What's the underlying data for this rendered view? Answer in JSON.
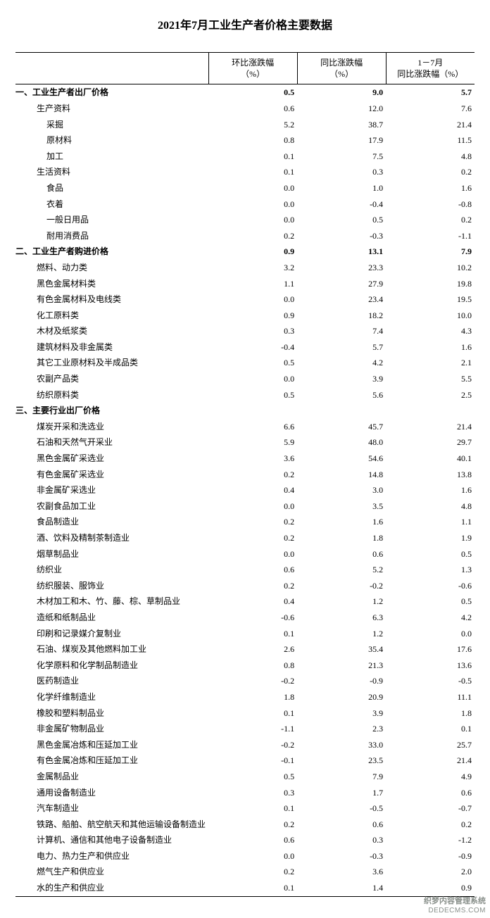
{
  "title": "2021年7月工业生产者价格主要数据",
  "columns": {
    "label": "",
    "mom": "环比涨跌幅\n（%）",
    "yoy": "同比涨跌幅\n（%）",
    "ytd": "1－7月\n同比涨跌幅（%）"
  },
  "rows": [
    {
      "label": "一、工业生产者出厂价格",
      "indent": 0,
      "bold": true,
      "mom": "0.5",
      "yoy": "9.0",
      "ytd": "5.7"
    },
    {
      "label": "生产资料",
      "indent": 1,
      "mom": "0.6",
      "yoy": "12.0",
      "ytd": "7.6"
    },
    {
      "label": "采掘",
      "indent": 2,
      "mom": "5.2",
      "yoy": "38.7",
      "ytd": "21.4"
    },
    {
      "label": "原材料",
      "indent": 2,
      "mom": "0.8",
      "yoy": "17.9",
      "ytd": "11.5"
    },
    {
      "label": "加工",
      "indent": 2,
      "mom": "0.1",
      "yoy": "7.5",
      "ytd": "4.8"
    },
    {
      "label": "生活资料",
      "indent": 1,
      "mom": "0.1",
      "yoy": "0.3",
      "ytd": "0.2"
    },
    {
      "label": "食品",
      "indent": 2,
      "mom": "0.0",
      "yoy": "1.0",
      "ytd": "1.6"
    },
    {
      "label": "衣着",
      "indent": 2,
      "mom": "0.0",
      "yoy": "-0.4",
      "ytd": "-0.8"
    },
    {
      "label": "一般日用品",
      "indent": 2,
      "mom": "0.0",
      "yoy": "0.5",
      "ytd": "0.2"
    },
    {
      "label": "耐用消费品",
      "indent": 2,
      "mom": "0.2",
      "yoy": "-0.3",
      "ytd": "-1.1"
    },
    {
      "label": "二、工业生产者购进价格",
      "indent": 0,
      "bold": true,
      "mom": "0.9",
      "yoy": "13.1",
      "ytd": "7.9"
    },
    {
      "label": "燃料、动力类",
      "indent": 1,
      "mom": "3.2",
      "yoy": "23.3",
      "ytd": "10.2"
    },
    {
      "label": "黑色金属材料类",
      "indent": 1,
      "mom": "1.1",
      "yoy": "27.9",
      "ytd": "19.8"
    },
    {
      "label": "有色金属材料及电线类",
      "indent": 1,
      "mom": "0.0",
      "yoy": "23.4",
      "ytd": "19.5"
    },
    {
      "label": "化工原料类",
      "indent": 1,
      "mom": "0.9",
      "yoy": "18.2",
      "ytd": "10.0"
    },
    {
      "label": "木材及纸浆类",
      "indent": 1,
      "mom": "0.3",
      "yoy": "7.4",
      "ytd": "4.3"
    },
    {
      "label": "建筑材料及非金属类",
      "indent": 1,
      "mom": "-0.4",
      "yoy": "5.7",
      "ytd": "1.6"
    },
    {
      "label": "其它工业原材料及半成品类",
      "indent": 1,
      "mom": "0.5",
      "yoy": "4.2",
      "ytd": "2.1"
    },
    {
      "label": "农副产品类",
      "indent": 1,
      "mom": "0.0",
      "yoy": "3.9",
      "ytd": "5.5"
    },
    {
      "label": "纺织原料类",
      "indent": 1,
      "mom": "0.5",
      "yoy": "5.6",
      "ytd": "2.5"
    },
    {
      "label": "三、主要行业出厂价格",
      "indent": 0,
      "bold": true,
      "mom": "",
      "yoy": "",
      "ytd": ""
    },
    {
      "label": "煤炭开采和洗选业",
      "indent": 1,
      "mom": "6.6",
      "yoy": "45.7",
      "ytd": "21.4"
    },
    {
      "label": "石油和天然气开采业",
      "indent": 1,
      "mom": "5.9",
      "yoy": "48.0",
      "ytd": "29.7"
    },
    {
      "label": "黑色金属矿采选业",
      "indent": 1,
      "mom": "3.6",
      "yoy": "54.6",
      "ytd": "40.1"
    },
    {
      "label": "有色金属矿采选业",
      "indent": 1,
      "mom": "0.2",
      "yoy": "14.8",
      "ytd": "13.8"
    },
    {
      "label": "非金属矿采选业",
      "indent": 1,
      "mom": "0.4",
      "yoy": "3.0",
      "ytd": "1.6"
    },
    {
      "label": "农副食品加工业",
      "indent": 1,
      "mom": "0.0",
      "yoy": "3.5",
      "ytd": "4.8"
    },
    {
      "label": "食品制造业",
      "indent": 1,
      "mom": "0.2",
      "yoy": "1.6",
      "ytd": "1.1"
    },
    {
      "label": "酒、饮料及精制茶制造业",
      "indent": 1,
      "mom": "0.2",
      "yoy": "1.8",
      "ytd": "1.9"
    },
    {
      "label": "烟草制品业",
      "indent": 1,
      "mom": "0.0",
      "yoy": "0.6",
      "ytd": "0.5"
    },
    {
      "label": "纺织业",
      "indent": 1,
      "mom": "0.6",
      "yoy": "5.2",
      "ytd": "1.3"
    },
    {
      "label": "纺织服装、服饰业",
      "indent": 1,
      "mom": "0.2",
      "yoy": "-0.2",
      "ytd": "-0.6"
    },
    {
      "label": "木材加工和木、竹、藤、棕、草制品业",
      "indent": 1,
      "mom": "0.4",
      "yoy": "1.2",
      "ytd": "0.5"
    },
    {
      "label": "造纸和纸制品业",
      "indent": 1,
      "mom": "-0.6",
      "yoy": "6.3",
      "ytd": "4.2"
    },
    {
      "label": "印刷和记录媒介复制业",
      "indent": 1,
      "mom": "0.1",
      "yoy": "1.2",
      "ytd": "0.0"
    },
    {
      "label": "石油、煤炭及其他燃料加工业",
      "indent": 1,
      "mom": "2.6",
      "yoy": "35.4",
      "ytd": "17.6"
    },
    {
      "label": "化学原料和化学制品制造业",
      "indent": 1,
      "mom": "0.8",
      "yoy": "21.3",
      "ytd": "13.6"
    },
    {
      "label": "医药制造业",
      "indent": 1,
      "mom": "-0.2",
      "yoy": "-0.9",
      "ytd": "-0.5"
    },
    {
      "label": "化学纤维制造业",
      "indent": 1,
      "mom": "1.8",
      "yoy": "20.9",
      "ytd": "11.1"
    },
    {
      "label": "橡胶和塑料制品业",
      "indent": 1,
      "mom": "0.1",
      "yoy": "3.9",
      "ytd": "1.8"
    },
    {
      "label": "非金属矿物制品业",
      "indent": 1,
      "mom": "-1.1",
      "yoy": "2.3",
      "ytd": "0.1"
    },
    {
      "label": "黑色金属冶炼和压延加工业",
      "indent": 1,
      "mom": "-0.2",
      "yoy": "33.0",
      "ytd": "25.7"
    },
    {
      "label": "有色金属冶炼和压延加工业",
      "indent": 1,
      "mom": "-0.1",
      "yoy": "23.5",
      "ytd": "21.4"
    },
    {
      "label": "金属制品业",
      "indent": 1,
      "mom": "0.5",
      "yoy": "7.9",
      "ytd": "4.9"
    },
    {
      "label": "通用设备制造业",
      "indent": 1,
      "mom": "0.3",
      "yoy": "1.7",
      "ytd": "0.6"
    },
    {
      "label": "汽车制造业",
      "indent": 1,
      "mom": "0.1",
      "yoy": "-0.5",
      "ytd": "-0.7"
    },
    {
      "label": "铁路、船舶、航空航天和其他运输设备制造业",
      "indent": 1,
      "mom": "0.2",
      "yoy": "0.6",
      "ytd": "0.2"
    },
    {
      "label": "计算机、通信和其他电子设备制造业",
      "indent": 1,
      "mom": "0.6",
      "yoy": "0.3",
      "ytd": "-1.2"
    },
    {
      "label": "电力、热力生产和供应业",
      "indent": 1,
      "mom": "0.0",
      "yoy": "-0.3",
      "ytd": "-0.9"
    },
    {
      "label": "燃气生产和供应业",
      "indent": 1,
      "mom": "0.2",
      "yoy": "3.6",
      "ytd": "2.0"
    },
    {
      "label": "水的生产和供应业",
      "indent": 1,
      "mom": "0.1",
      "yoy": "1.4",
      "ytd": "0.9"
    }
  ],
  "footer": {
    "cn": "织梦内容管理系统",
    "en": "DEDECMS.COM"
  }
}
